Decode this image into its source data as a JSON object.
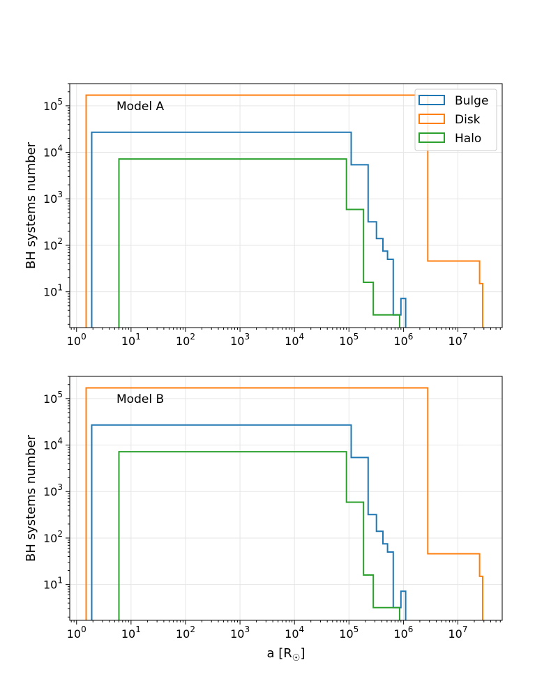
{
  "figure": {
    "xlabel": "a [R☉]",
    "x_tick_labels": [
      "10^0",
      "10^1",
      "10^2",
      "10^3",
      "10^4",
      "10^5",
      "10^6",
      "10^7"
    ]
  },
  "chart_data": [
    {
      "type": "histogram-step",
      "annotation": "Model A",
      "xscale": "log",
      "yscale": "log",
      "xlim": [
        0.75,
        65000000
      ],
      "ylim": [
        1.7,
        300000
      ],
      "grid": true,
      "xlabel": "",
      "ylabel": "BH systems number",
      "legend": {
        "placement": "top-right",
        "entries": [
          "Bulge",
          "Disk",
          "Halo"
        ]
      },
      "series": [
        {
          "name": "Bulge",
          "color": "#1f77b4",
          "steps": [
            [
              1.9,
              27000
            ],
            [
              110000,
              5400
            ],
            [
              225000,
              320
            ],
            [
              320000,
              140
            ],
            [
              420000,
              75
            ],
            [
              510000,
              50
            ],
            [
              650000,
              3.2
            ],
            [
              750000,
              3.2
            ],
            [
              900000,
              7.2
            ],
            [
              1100000,
              7.2
            ]
          ]
        },
        {
          "name": "Disk",
          "color": "#ff7f0e",
          "steps": [
            [
              1.5,
              170000
            ],
            [
              2800000,
              46
            ],
            [
              5700000,
              46
            ],
            [
              25000000,
              15
            ],
            [
              28500000,
              15
            ]
          ]
        },
        {
          "name": "Halo",
          "color": "#2ca02c",
          "steps": [
            [
              6,
              7200
            ],
            [
              90000,
              590
            ],
            [
              185000,
              16
            ],
            [
              280000,
              3.2
            ],
            [
              460000,
              3.2
            ],
            [
              560000,
              3.2
            ],
            [
              650000,
              3.2
            ],
            [
              850000,
              3.2
            ]
          ]
        }
      ]
    },
    {
      "type": "histogram-step",
      "annotation": "Model B",
      "xscale": "log",
      "yscale": "log",
      "xlim": [
        0.75,
        65000000
      ],
      "ylim": [
        1.7,
        300000
      ],
      "grid": true,
      "xlabel": "a [R☉]",
      "ylabel": "BH systems number",
      "legend": null,
      "series": [
        {
          "name": "Bulge",
          "color": "#1f77b4",
          "steps": [
            [
              1.9,
              27000
            ],
            [
              110000,
              5400
            ],
            [
              225000,
              320
            ],
            [
              320000,
              140
            ],
            [
              420000,
              75
            ],
            [
              510000,
              50
            ],
            [
              650000,
              3.2
            ],
            [
              750000,
              3.2
            ],
            [
              900000,
              7.2
            ],
            [
              1100000,
              7.2
            ]
          ]
        },
        {
          "name": "Disk",
          "color": "#ff7f0e",
          "steps": [
            [
              1.5,
              170000
            ],
            [
              2800000,
              46
            ],
            [
              5700000,
              46
            ],
            [
              25000000,
              15
            ],
            [
              28500000,
              15
            ]
          ]
        },
        {
          "name": "Halo",
          "color": "#2ca02c",
          "steps": [
            [
              6,
              7200
            ],
            [
              90000,
              590
            ],
            [
              185000,
              16
            ],
            [
              280000,
              3.2
            ],
            [
              460000,
              3.2
            ],
            [
              560000,
              3.2
            ],
            [
              650000,
              3.2
            ],
            [
              850000,
              3.2
            ]
          ]
        }
      ]
    }
  ]
}
